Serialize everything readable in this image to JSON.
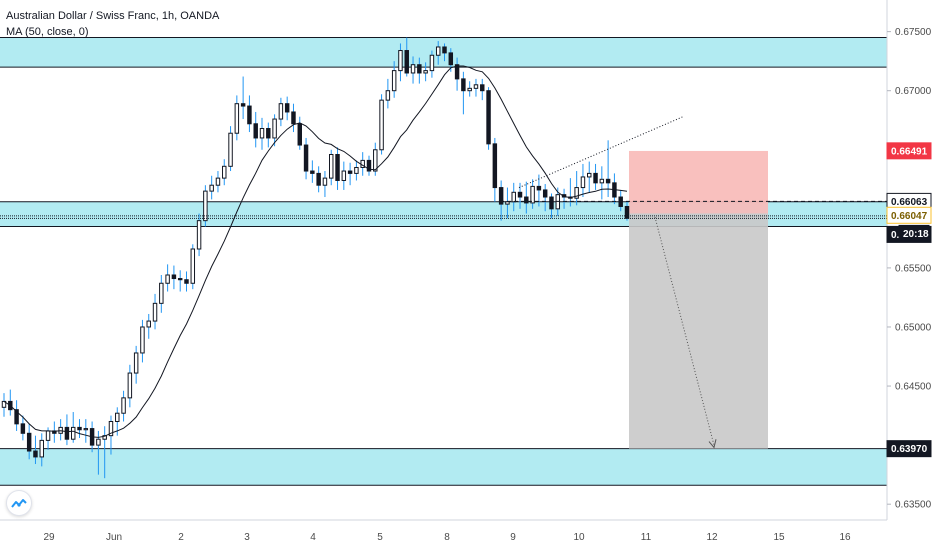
{
  "header": {
    "title": "Australian Dollar / Swiss Franc, 1h, OANDA",
    "indicator": "MA (50, close, 0)"
  },
  "colors": {
    "up": "#131722",
    "down": "#131722",
    "wick": "#2196f3",
    "zone": "#b2ebf2",
    "stop": "#f8b9b7",
    "target": "#c9c9c9",
    "redTag": "#f23645",
    "yellowTag": "#fbc02d"
  },
  "chart_data": {
    "type": "candlestick",
    "symbol": "Australian Dollar / Swiss Franc, 1h, OANDA",
    "y_ticks": [
      "0.67500",
      "0.67000",
      "0.66500",
      "0.66000",
      "0.65500",
      "0.65000",
      "0.64500",
      "0.64000",
      "0.63500"
    ],
    "x_ticks": [
      "29",
      "Jun",
      "2",
      "3",
      "4",
      "5",
      "8",
      "9",
      "10",
      "11",
      "12",
      "15",
      "16"
    ],
    "ylim": [
      0.634,
      0.677
    ],
    "price_tags": [
      {
        "label": "0.66491",
        "style": "red"
      },
      {
        "label": "0.66063",
        "style": "white"
      },
      {
        "label": "0.66047",
        "style": "yellow"
      },
      {
        "label": "0.65919",
        "style": "black"
      },
      {
        "label": "20:18",
        "style": "black"
      },
      {
        "label": "0.63970",
        "style": "black"
      }
    ],
    "zones": [
      {
        "from": 0.672,
        "to": 0.6745
      },
      {
        "from": 0.6585,
        "to": 0.6606
      },
      {
        "from": 0.6366,
        "to": 0.6397
      }
    ],
    "position": {
      "type": "short",
      "entry": 0.6596,
      "stop": 0.6649,
      "target": 0.6397
    },
    "moving_average": {
      "period": 50,
      "source": "close"
    },
    "candles": {
      "open": [
        0.6432,
        0.6437,
        0.643,
        0.6418,
        0.641,
        0.6395,
        0.639,
        0.6404,
        0.6412,
        0.641,
        0.6415,
        0.6405,
        0.6415,
        0.6413,
        0.6414,
        0.64,
        0.6405,
        0.6408,
        0.642,
        0.6427,
        0.644,
        0.6461,
        0.6478,
        0.65,
        0.6505,
        0.652,
        0.6537,
        0.6544,
        0.6541,
        0.654,
        0.6537,
        0.6566,
        0.659,
        0.6615,
        0.662,
        0.6626,
        0.6636,
        0.6664,
        0.6689,
        0.6687,
        0.6672,
        0.666,
        0.6668,
        0.666,
        0.6676,
        0.6689,
        0.6682,
        0.6672,
        0.6654,
        0.6632,
        0.663,
        0.662,
        0.6626,
        0.6646,
        0.6624,
        0.6632,
        0.663,
        0.6635,
        0.6641,
        0.6632,
        0.665,
        0.6692,
        0.67,
        0.6717,
        0.6734,
        0.6715,
        0.6722,
        0.6715,
        0.6717,
        0.673,
        0.6737,
        0.6732,
        0.6722,
        0.671,
        0.67,
        0.6702,
        0.6705,
        0.67,
        0.6655,
        0.6618,
        0.6604,
        0.6606,
        0.6614,
        0.661,
        0.6605,
        0.6619,
        0.6616,
        0.661,
        0.66,
        0.6612,
        0.661,
        0.6609,
        0.6618,
        0.6627,
        0.663,
        0.6622,
        0.6625,
        0.6622,
        0.661,
        0.6602
      ],
      "high": [
        0.6444,
        0.6447,
        0.6438,
        0.6425,
        0.6418,
        0.6408,
        0.641,
        0.6415,
        0.642,
        0.6422,
        0.6426,
        0.6428,
        0.6422,
        0.6422,
        0.642,
        0.6412,
        0.6416,
        0.6425,
        0.6432,
        0.6446,
        0.6468,
        0.6484,
        0.6506,
        0.6511,
        0.6528,
        0.6544,
        0.6553,
        0.6552,
        0.6548,
        0.6547,
        0.657,
        0.6596,
        0.662,
        0.6628,
        0.6632,
        0.6642,
        0.667,
        0.6696,
        0.6712,
        0.6696,
        0.6682,
        0.6677,
        0.6673,
        0.668,
        0.6694,
        0.6695,
        0.6689,
        0.6678,
        0.666,
        0.6641,
        0.6636,
        0.6632,
        0.665,
        0.6652,
        0.664,
        0.6639,
        0.6641,
        0.6648,
        0.6645,
        0.6656,
        0.6697,
        0.671,
        0.6725,
        0.674,
        0.6745,
        0.6729,
        0.6728,
        0.6724,
        0.6734,
        0.6742,
        0.674,
        0.6736,
        0.6728,
        0.6716,
        0.6708,
        0.671,
        0.671,
        0.6703,
        0.666,
        0.6624,
        0.6618,
        0.6622,
        0.6622,
        0.6623,
        0.6625,
        0.6629,
        0.6621,
        0.6613,
        0.6618,
        0.6617,
        0.6626,
        0.6632,
        0.6638,
        0.664,
        0.6638,
        0.6636,
        0.6658,
        0.663,
        0.6616,
        0.6606
      ],
      "low": [
        0.6424,
        0.6425,
        0.6412,
        0.6404,
        0.6388,
        0.6384,
        0.6382,
        0.6396,
        0.6402,
        0.6404,
        0.64,
        0.6402,
        0.6406,
        0.6402,
        0.6394,
        0.6375,
        0.6372,
        0.6392,
        0.6408,
        0.642,
        0.6432,
        0.6452,
        0.647,
        0.649,
        0.6498,
        0.6512,
        0.653,
        0.6532,
        0.653,
        0.653,
        0.6532,
        0.656,
        0.6585,
        0.6608,
        0.6614,
        0.662,
        0.6632,
        0.6658,
        0.6676,
        0.6665,
        0.6652,
        0.665,
        0.6652,
        0.6653,
        0.667,
        0.6675,
        0.6665,
        0.665,
        0.6625,
        0.6622,
        0.6614,
        0.661,
        0.662,
        0.6616,
        0.6616,
        0.662,
        0.6624,
        0.6628,
        0.6628,
        0.6628,
        0.6646,
        0.6685,
        0.6694,
        0.6708,
        0.6712,
        0.6706,
        0.6706,
        0.6708,
        0.6711,
        0.6722,
        0.6725,
        0.6716,
        0.67,
        0.668,
        0.6695,
        0.6695,
        0.6692,
        0.665,
        0.6606,
        0.659,
        0.6592,
        0.6598,
        0.66,
        0.6596,
        0.66,
        0.6602,
        0.6598,
        0.6592,
        0.6594,
        0.66,
        0.6602,
        0.6603,
        0.661,
        0.6614,
        0.6616,
        0.6608,
        0.661,
        0.6604,
        0.6598,
        0.659
      ],
      "close": [
        0.6437,
        0.643,
        0.6418,
        0.641,
        0.6395,
        0.639,
        0.6404,
        0.6412,
        0.641,
        0.6415,
        0.6405,
        0.6415,
        0.6413,
        0.6414,
        0.64,
        0.6405,
        0.6408,
        0.642,
        0.6427,
        0.644,
        0.6461,
        0.6478,
        0.65,
        0.6505,
        0.652,
        0.6537,
        0.6544,
        0.6541,
        0.654,
        0.6537,
        0.6566,
        0.659,
        0.6615,
        0.662,
        0.6626,
        0.6636,
        0.6664,
        0.6689,
        0.6687,
        0.6672,
        0.666,
        0.6668,
        0.666,
        0.6676,
        0.6689,
        0.6682,
        0.6672,
        0.6654,
        0.6632,
        0.663,
        0.662,
        0.6626,
        0.6646,
        0.6624,
        0.6632,
        0.663,
        0.6635,
        0.6641,
        0.6632,
        0.665,
        0.6692,
        0.67,
        0.6717,
        0.6734,
        0.6715,
        0.6722,
        0.6715,
        0.6717,
        0.673,
        0.6737,
        0.6732,
        0.6722,
        0.671,
        0.67,
        0.6702,
        0.6705,
        0.67,
        0.6655,
        0.6618,
        0.6604,
        0.6606,
        0.6614,
        0.661,
        0.6605,
        0.6619,
        0.6616,
        0.661,
        0.66,
        0.6612,
        0.661,
        0.6609,
        0.6618,
        0.6627,
        0.663,
        0.6622,
        0.6625,
        0.6622,
        0.661,
        0.6602,
        0.6592
      ]
    }
  }
}
